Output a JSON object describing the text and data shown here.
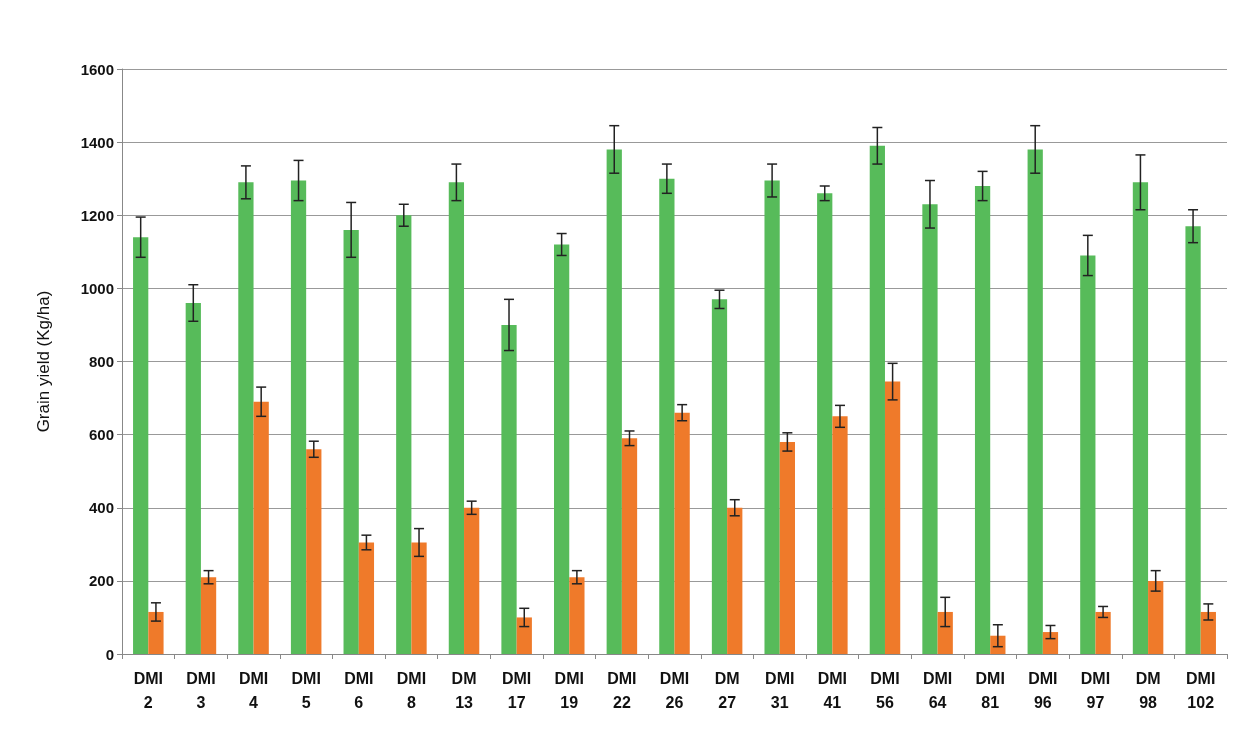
{
  "chart_data": {
    "type": "bar",
    "ylabel": "Grain yield (Kg/ha)",
    "categories": [
      "DMI 2",
      "DMI 3",
      "DMI 4",
      "DMI 5",
      "DMI 6",
      "DMI 8",
      "DM 13",
      "DMI 17",
      "DMI 19",
      "DMI 22",
      "DMI 26",
      "DM 27",
      "DMI 31",
      "DMI 41",
      "DMI 56",
      "DMI 64",
      "DMI 81",
      "DMI 96",
      "DMI 97",
      "DM 98",
      "DMI 102"
    ],
    "series": [
      {
        "color": "#57bb5a",
        "values": [
          1140,
          960,
          1290,
          1295,
          1160,
          1200,
          1290,
          900,
          1120,
          1380,
          1300,
          970,
          1295,
          1260,
          1390,
          1230,
          1280,
          1380,
          1090,
          1290,
          1170
        ],
        "errors": [
          55,
          50,
          45,
          55,
          75,
          30,
          50,
          70,
          30,
          65,
          40,
          25,
          45,
          20,
          50,
          65,
          40,
          65,
          55,
          75,
          45
        ]
      },
      {
        "color": "#ef7a2a",
        "values": [
          115,
          210,
          690,
          560,
          305,
          305,
          400,
          100,
          210,
          590,
          660,
          400,
          580,
          650,
          745,
          115,
          50,
          60,
          115,
          200,
          115
        ],
        "errors": [
          25,
          18,
          40,
          22,
          20,
          38,
          18,
          25,
          18,
          20,
          22,
          22,
          25,
          30,
          50,
          40,
          30,
          18,
          15,
          28,
          22
        ]
      }
    ],
    "ylim": [
      0,
      1600
    ],
    "yticks": [
      0,
      200,
      400,
      600,
      800,
      1000,
      1200,
      1400,
      1600
    ],
    "grid": "y"
  }
}
